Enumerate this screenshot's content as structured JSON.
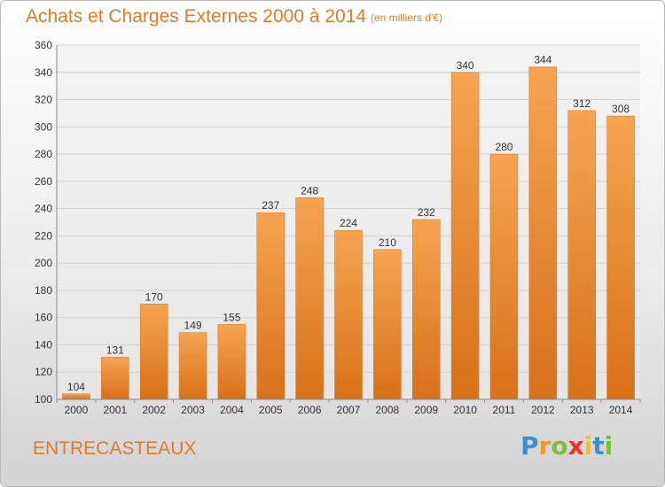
{
  "chart_data": {
    "type": "bar",
    "title": "Achats et Charges Externes 2000 à 2014",
    "subtitle": "(en milliers d'€)",
    "categories": [
      "2000",
      "2001",
      "2002",
      "2003",
      "2004",
      "2005",
      "2006",
      "2007",
      "2008",
      "2009",
      "2010",
      "2011",
      "2012",
      "2013",
      "2014"
    ],
    "values": [
      104,
      131,
      170,
      149,
      155,
      237,
      248,
      224,
      210,
      232,
      340,
      280,
      344,
      312,
      308
    ],
    "ylim": [
      100,
      360
    ],
    "yticks": [
      100,
      120,
      140,
      160,
      180,
      200,
      220,
      240,
      260,
      280,
      300,
      320,
      340,
      360
    ],
    "grid": true,
    "bar_color": "#f0922e",
    "bar_color_dark": "#d86f12"
  },
  "footer": {
    "town": "ENTRECASTEAUX",
    "logo": {
      "letters": [
        "P",
        "r",
        "o",
        "x",
        "i",
        "t",
        "i"
      ],
      "colors": [
        "#3a8fd0",
        "#f29a1e",
        "#7bbf3a",
        "#e8332a",
        "#f2c21e",
        "#3a8fd0",
        "#7bbf3a"
      ]
    }
  },
  "colors": {
    "accent": "#e07b24"
  }
}
